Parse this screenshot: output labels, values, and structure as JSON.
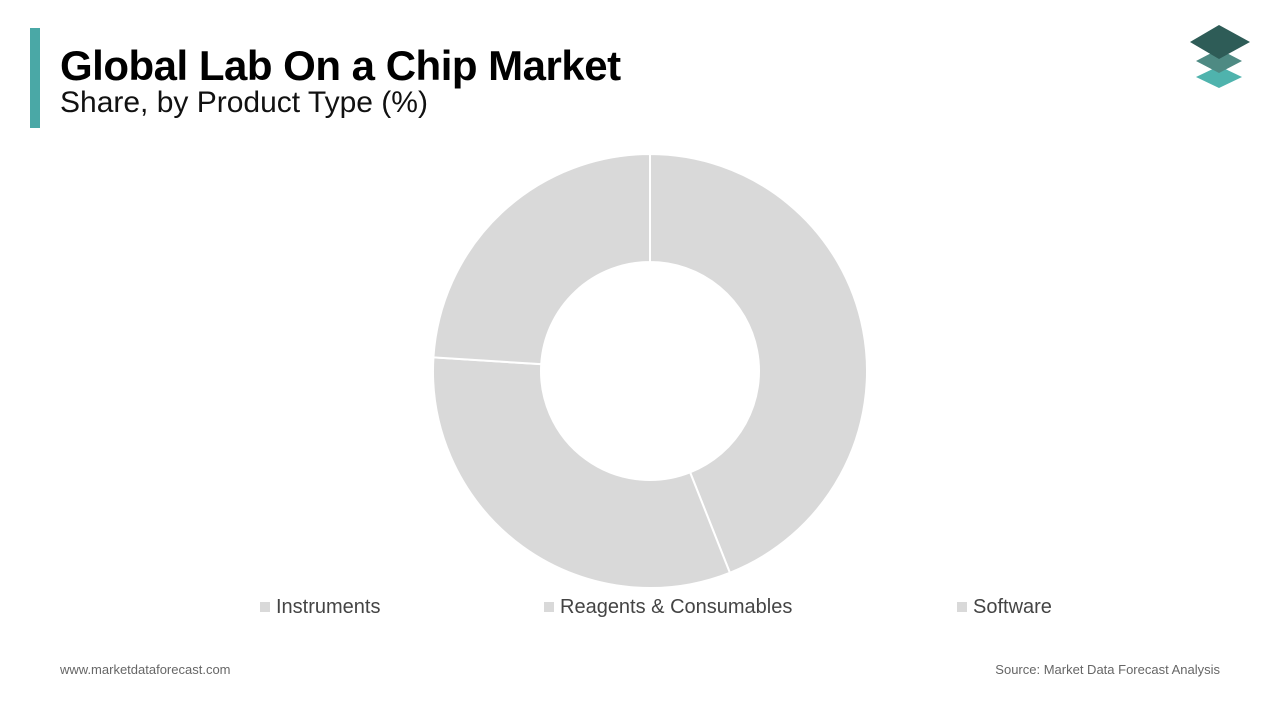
{
  "header": {
    "title": "Global Lab On a Chip Market",
    "subtitle": "Share, by Product Type (%)"
  },
  "footer": {
    "website": "www.marketdataforecast.com",
    "source": "Source: Market Data Forecast Analysis"
  },
  "colors": {
    "accent": "#4aa8a6",
    "slice": "#d9d9d9",
    "slice_border": "#ffffff",
    "logo_dark": "#2e5c57",
    "logo_mid": "#4e8a83",
    "logo_light": "#4fb3ad"
  },
  "icons": {
    "logo": "stacked-layers-logo-icon"
  },
  "chart_data": {
    "type": "pie",
    "donut": true,
    "legend_position": "bottom",
    "categories": [
      "Instruments",
      "Reagents & Consumables",
      "Software"
    ],
    "values": [
      44,
      32,
      24
    ]
  }
}
